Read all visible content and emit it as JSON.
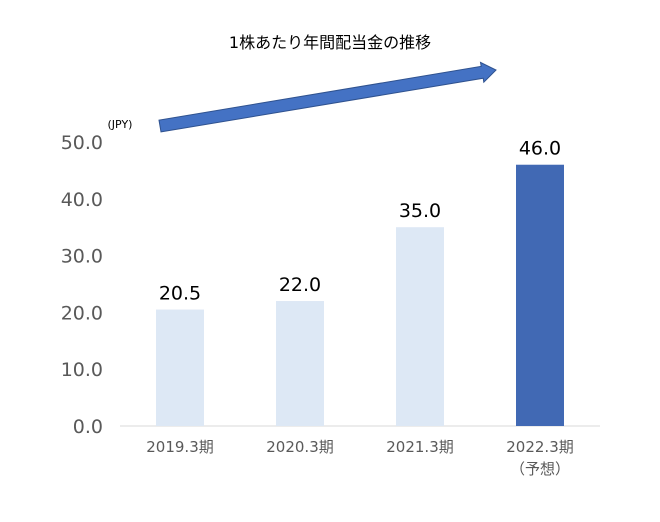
{
  "chart_data": {
    "type": "bar",
    "title": "1株あたり年間配当金の推移",
    "unit_label": "(JPY)",
    "categories": [
      "2019.3期",
      "2020.3期",
      "2021.3期",
      "2022.3期"
    ],
    "category_sublabels": [
      "",
      "",
      "",
      "（予想）"
    ],
    "values": [
      20.5,
      22.0,
      35.0,
      46.0
    ],
    "value_labels": [
      "20.5",
      "22.0",
      "35.0",
      "46.0"
    ],
    "ylim": [
      0,
      50
    ],
    "yticks": [
      "0.0",
      "10.0",
      "20.0",
      "30.0",
      "40.0",
      "50.0"
    ],
    "grid": false,
    "legend": "none",
    "colors": {
      "actual": "#dde8f5",
      "forecast": "#4169b4",
      "arrow": "#4472c4",
      "arrow_edge": "#2f528f",
      "axis": "#d9d9d9",
      "tick_text": "#595959",
      "text": "#000000"
    }
  }
}
